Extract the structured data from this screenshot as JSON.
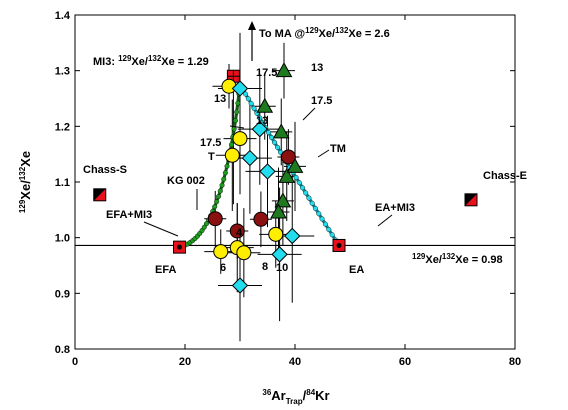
{
  "chart_data": {
    "type": "scatter",
    "xlabel": {
      "sup": "36",
      "base": "Ar",
      "sub": "Trap",
      "mid": "/",
      "sup2": "84",
      "base2": "Kr"
    },
    "ylabel": {
      "sup1": "129",
      "base1": "Xe/",
      "sup2": "132",
      "base2": "Xe"
    },
    "xlim": [
      0,
      80
    ],
    "ylim": [
      0.8,
      1.4
    ],
    "x_ticks": [
      "0",
      "20",
      "40",
      "60",
      "80"
    ],
    "y_ticks": [
      "0.8",
      "0.9",
      "1.0",
      "1.1",
      "1.2",
      "1.3",
      "1.4"
    ],
    "grid": false,
    "series": [
      {
        "marker": "square-half",
        "color": "#e8101a",
        "points": [
          {
            "x": 4.5,
            "y": 1.077,
            "label": "Chass-S"
          },
          {
            "x": 72,
            "y": 1.068,
            "label": "Chass-E"
          }
        ]
      },
      {
        "marker": "square-red-dot",
        "color": "#e8101a",
        "points": [
          {
            "x": 19,
            "y": 0.983,
            "label": "EFA"
          },
          {
            "x": 48,
            "y": 0.986,
            "label": "EA"
          }
        ]
      },
      {
        "marker": "square-red-cross",
        "color": "#e8101a",
        "points": [
          {
            "x": 28.8,
            "y": 1.29
          }
        ]
      },
      {
        "marker": "circle",
        "color": "#ffee00",
        "points": [
          {
            "x": 28,
            "y": 1.272,
            "xerr": 3,
            "yerr": 0.04
          },
          {
            "x": 28.6,
            "y": 1.148,
            "xerr": 3,
            "yerr": 0.1
          },
          {
            "x": 30,
            "y": 1.178,
            "xerr": 3,
            "yerr": 0.1
          },
          {
            "x": 26.5,
            "y": 0.975,
            "xerr": 3,
            "yerr": 0.04
          },
          {
            "x": 29.5,
            "y": 0.982,
            "xerr": 3,
            "yerr": 0.08
          },
          {
            "x": 30.7,
            "y": 0.973,
            "xerr": 3,
            "yerr": 0.08
          },
          {
            "x": 36.5,
            "y": 1.006,
            "xerr": 3,
            "yerr": 0.06
          }
        ]
      },
      {
        "marker": "circle",
        "color": "#8b1010",
        "points": [
          {
            "x": 25.5,
            "y": 1.034,
            "xerr": 2,
            "yerr": 0.05
          },
          {
            "x": 29.5,
            "y": 1.012,
            "xerr": 2,
            "yerr": 0.05
          },
          {
            "x": 33.8,
            "y": 1.033,
            "xerr": 2,
            "yerr": 0.05
          },
          {
            "x": 38.8,
            "y": 1.145,
            "xerr": 2,
            "yerr": 0.05
          }
        ]
      },
      {
        "marker": "diamond",
        "color": "#22ddee",
        "points": [
          {
            "x": 30,
            "y": 1.268,
            "xerr": 4,
            "yerr": 0.1
          },
          {
            "x": 33.6,
            "y": 1.195,
            "xerr": 4,
            "yerr": 0.1
          },
          {
            "x": 31.8,
            "y": 1.143,
            "xerr": 4,
            "yerr": 0.1
          },
          {
            "x": 35,
            "y": 1.119,
            "xerr": 4,
            "yerr": 0.1
          },
          {
            "x": 39.5,
            "y": 1.003,
            "xerr": 4,
            "yerr": 0.12
          },
          {
            "x": 37.2,
            "y": 0.97,
            "xerr": 4,
            "yerr": 0.12
          },
          {
            "x": 30,
            "y": 0.914,
            "xerr": 4,
            "yerr": 0.1
          }
        ]
      },
      {
        "marker": "triangle",
        "color": "#1f7a1f",
        "points": [
          {
            "x": 38,
            "y": 1.3,
            "xerr": 2,
            "yerr": 0.05
          },
          {
            "x": 34.5,
            "y": 1.236,
            "xerr": 2,
            "yerr": 0.06
          },
          {
            "x": 37.5,
            "y": 1.19,
            "xerr": 2,
            "yerr": 0.06
          },
          {
            "x": 38.5,
            "y": 1.11,
            "xerr": 2,
            "yerr": 0.08
          },
          {
            "x": 40,
            "y": 1.128,
            "xerr": 2,
            "yerr": 0.08
          },
          {
            "x": 37.8,
            "y": 1.066,
            "xerr": 2,
            "yerr": 0.08
          },
          {
            "x": 37,
            "y": 1.046,
            "xerr": 2,
            "yerr": 0.08
          }
        ]
      }
    ],
    "curves": [
      {
        "name": "EFA+MI3",
        "color": "#1e9e1e",
        "from": [
          19,
          0.983
        ],
        "to": [
          30,
          1.275
        ],
        "ctrl": [
          27,
          1.0
        ]
      },
      {
        "name": "EA+MI3",
        "color": "#22ddee",
        "from": [
          48,
          0.986
        ],
        "to": [
          30,
          1.275
        ],
        "ctrl": [
          38,
          1.14
        ]
      }
    ],
    "hline": 0.986,
    "vline_x": 28.8,
    "annotations": {
      "to_ma": "To MA @",
      "to_ma_sup1": "129",
      "to_ma_mid": "Xe/",
      "to_ma_sup2": "132",
      "to_ma_end": "Xe = 2.6",
      "mi3_pre": "MI3: ",
      "mi3_sup1": "129",
      "mi3_mid": "Xe/",
      "mi3_sup2": "132",
      "mi3_end": "Xe = 1.29",
      "ratio_sup1": "129",
      "ratio_mid": "Xe/",
      "ratio_sup2": "132",
      "ratio_end": "Xe = 0.98",
      "chass_s": "Chass-S",
      "chass_e": "Chass-E",
      "efa": "EFA",
      "ea": "EA",
      "efa_mi3": "EFA+MI3",
      "ea_mi3": "EA+MI3",
      "kg002": "KG 002",
      "tm": "TM",
      "n175a": "17.5",
      "n13a": "13",
      "n13b": "13",
      "n175b": "17.5",
      "n13c": "13",
      "n175c": "17.5",
      "t": "T",
      "n4": "4",
      "n6": "6",
      "n8": "8",
      "n10": "10"
    }
  }
}
